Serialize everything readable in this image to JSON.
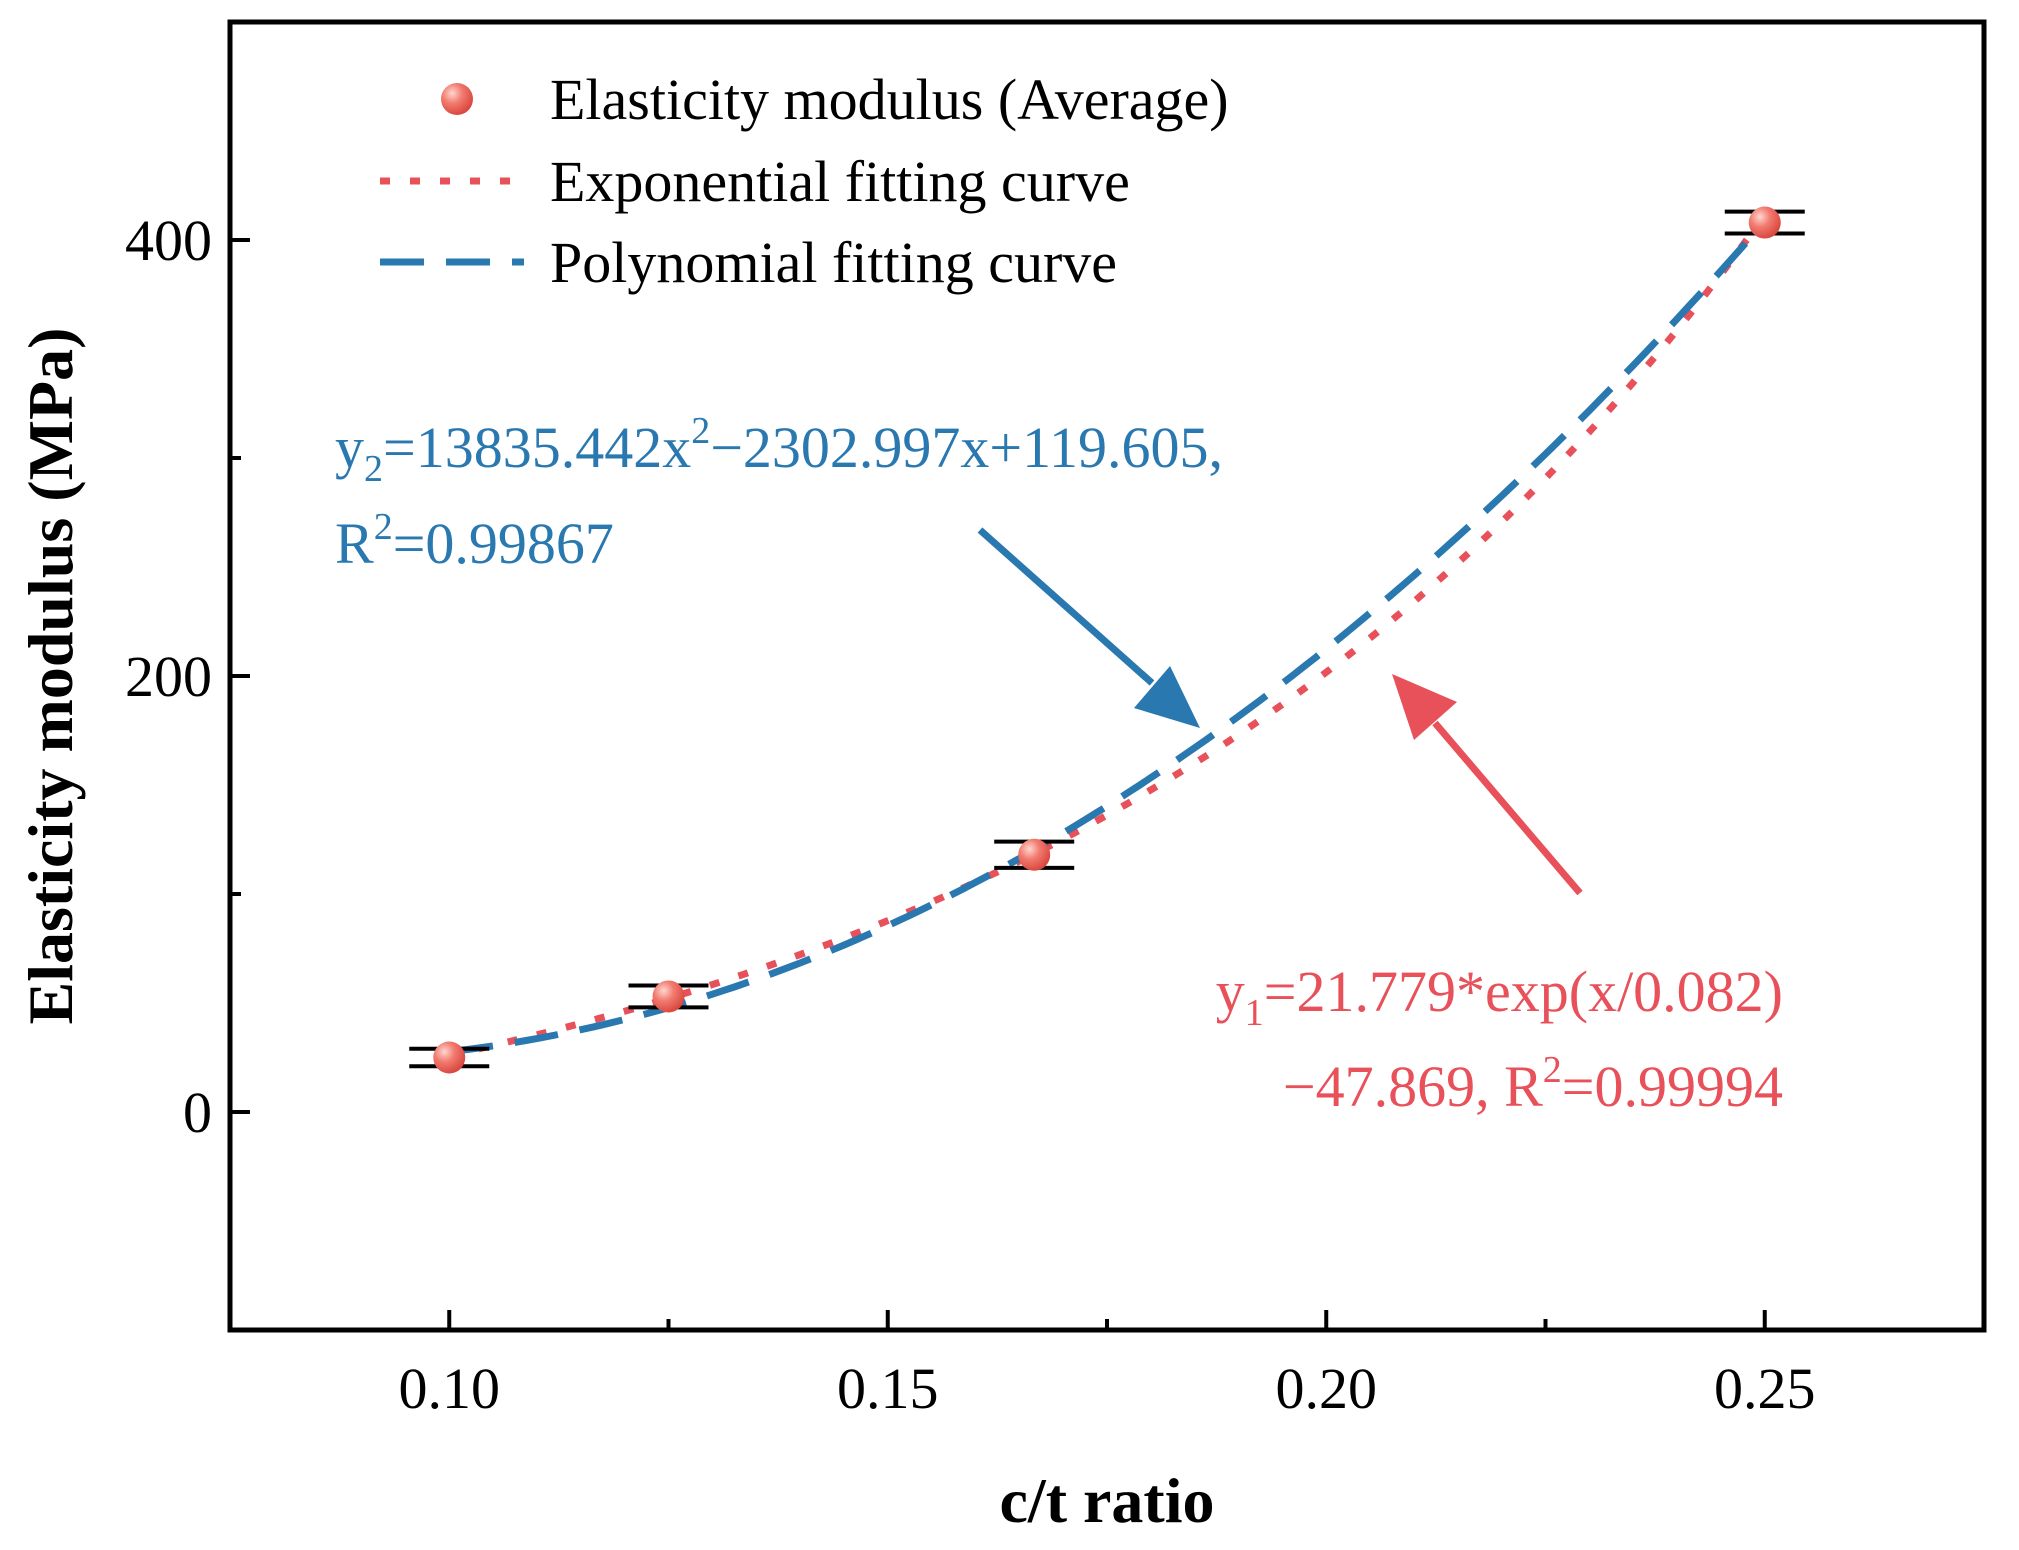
{
  "chart_data": {
    "type": "scatter",
    "xlabel": "c/t ratio",
    "ylabel": "Elasticity modulus (MPa)",
    "xlim": [
      0.075,
      0.275
    ],
    "ylim": [
      -100,
      500
    ],
    "x_ticks": [
      0.1,
      0.15,
      0.2,
      0.25
    ],
    "x_tick_labels": [
      "0.10",
      "0.15",
      "0.20",
      "0.25"
    ],
    "x_minor_ticks": [
      0.125,
      0.175,
      0.225
    ],
    "y_ticks": [
      0,
      200,
      400
    ],
    "y_tick_labels": [
      "0",
      "200",
      "400"
    ],
    "y_minor_ticks": [
      100,
      300
    ],
    "colors": {
      "points": "#f07070",
      "exponential": "#e8505a",
      "polynomial": "#2a78b0",
      "error_bar": "#000000"
    },
    "series": [
      {
        "name": "Elasticity modulus (Average)",
        "kind": "points",
        "x": [
          0.1,
          0.125,
          0.1667,
          0.25
        ],
        "y": [
          25,
          53,
          118,
          408
        ],
        "error": [
          4,
          5,
          6,
          5
        ]
      },
      {
        "name": "Exponential fitting curve",
        "kind": "exponential",
        "equation": {
          "a": 21.779,
          "b": 0.082,
          "c": -47.869
        },
        "x_range": [
          0.1,
          0.25
        ]
      },
      {
        "name": "Polynomial fitting curve",
        "kind": "polynomial",
        "equation": {
          "a": 13835.442,
          "b": -2302.997,
          "c": 119.605
        },
        "x_range": [
          0.1,
          0.25
        ]
      }
    ],
    "legend": {
      "position": "top-left",
      "items": [
        "Elasticity modulus (Average)",
        "Exponential fitting curve",
        "Polynomial fitting curve"
      ]
    },
    "annotations": {
      "poly": {
        "line1": {
          "y": "y",
          "sub": "2",
          "eq": "=13835.442x",
          "sup": "2",
          "rest": "−2302.997x+119.605,"
        },
        "line2": {
          "r": "R",
          "sup": "2",
          "val": "=0.99867"
        },
        "arrow_target": [
          0.184,
          162
        ]
      },
      "exp": {
        "line1": {
          "y": "y",
          "sub": "1",
          "rest": "=21.779*exp(x/0.082)"
        },
        "line2": {
          "pre": "−47.869, R",
          "sup": "2",
          "val": "=0.99994"
        },
        "arrow_target": [
          0.205,
          205
        ]
      }
    }
  }
}
